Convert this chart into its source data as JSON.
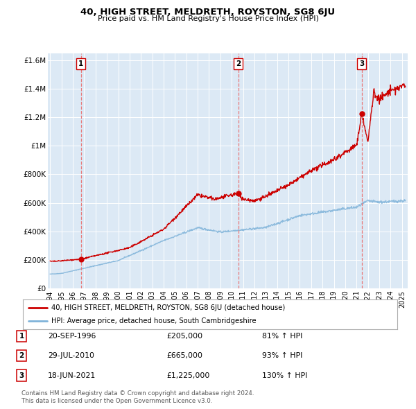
{
  "title": "40, HIGH STREET, MELDRETH, ROYSTON, SG8 6JU",
  "subtitle": "Price paid vs. HM Land Registry's House Price Index (HPI)",
  "background_color": "#dce9f5",
  "plot_bg_color": "#dce9f5",
  "fig_bg_color": "#ffffff",
  "hpi_line_color": "#7fb3d9",
  "price_line_color": "#cc0000",
  "sale_dot_color": "#cc0000",
  "vline_color": "#e87878",
  "ylim": [
    0,
    1650000
  ],
  "yticks": [
    0,
    200000,
    400000,
    600000,
    800000,
    1000000,
    1200000,
    1400000,
    1600000
  ],
  "ytick_labels": [
    "£0",
    "£200K",
    "£400K",
    "£600K",
    "£800K",
    "£1M",
    "£1.2M",
    "£1.4M",
    "£1.6M"
  ],
  "xlim_start": 1993.8,
  "xlim_end": 2025.5,
  "xticks": [
    1994,
    1995,
    1996,
    1997,
    1998,
    1999,
    2000,
    2001,
    2002,
    2003,
    2004,
    2005,
    2006,
    2007,
    2008,
    2009,
    2010,
    2011,
    2012,
    2013,
    2014,
    2015,
    2016,
    2017,
    2018,
    2019,
    2020,
    2021,
    2022,
    2023,
    2024,
    2025
  ],
  "sale1_x": 1996.72,
  "sale1_y": 205000,
  "sale1_label": "1",
  "sale1_date": "20-SEP-1996",
  "sale1_price": "£205,000",
  "sale1_hpi": "81% ↑ HPI",
  "sale2_x": 2010.57,
  "sale2_y": 665000,
  "sale2_label": "2",
  "sale2_date": "29-JUL-2010",
  "sale2_price": "£665,000",
  "sale2_hpi": "93% ↑ HPI",
  "sale3_x": 2021.46,
  "sale3_y": 1225000,
  "sale3_label": "3",
  "sale3_date": "18-JUN-2021",
  "sale3_price": "£1,225,000",
  "sale3_hpi": "130% ↑ HPI",
  "legend_line1": "40, HIGH STREET, MELDRETH, ROYSTON, SG8 6JU (detached house)",
  "legend_line2": "HPI: Average price, detached house, South Cambridgeshire",
  "footer1": "Contains HM Land Registry data © Crown copyright and database right 2024.",
  "footer2": "This data is licensed under the Open Government Licence v3.0."
}
